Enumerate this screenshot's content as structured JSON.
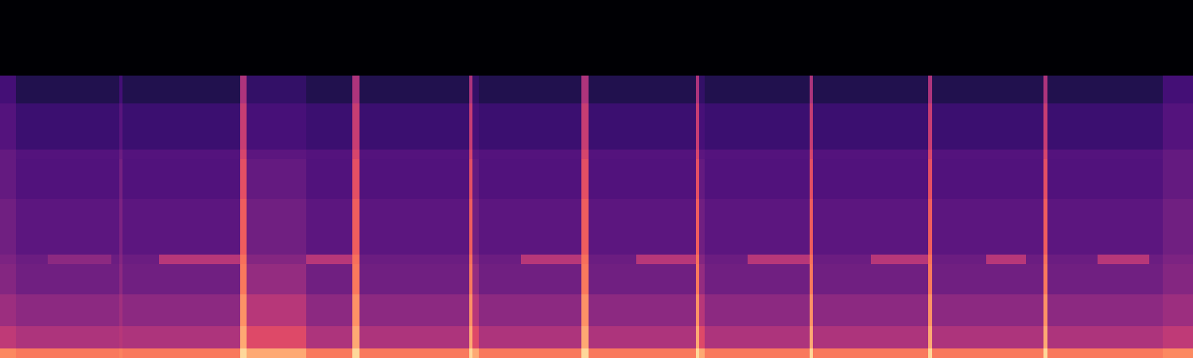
{
  "chart_data": {
    "type": "heatmap",
    "tick_labels": false,
    "color": "magma",
    "color_range": [
      0,
      1
    ],
    "xlim": [
      0,
      1500
    ],
    "ylim": [
      0,
      450
    ],
    "x_edges": [
      0,
      20,
      60,
      140,
      150,
      154,
      200,
      302,
      310,
      385,
      443,
      452,
      590,
      594,
      602,
      655,
      731,
      740,
      800,
      875,
      879,
      886,
      940,
      1018,
      1022,
      1095,
      1167,
      1172,
      1240,
      1290,
      1312,
      1317,
      1380,
      1445,
      1462,
      1500
    ],
    "y_edges": [
      0,
      12,
      40,
      80,
      118,
      130,
      200,
      250,
      262,
      320,
      355,
      450
    ],
    "cells": [
      [
        0.75,
        0.72,
        0.72,
        0.72,
        0.74,
        0.72,
        0.72,
        0.92,
        0.82,
        0.72,
        0.92,
        0.72,
        0.92,
        0.82,
        0.72,
        0.72,
        0.92,
        0.72,
        0.72,
        0.92,
        0.82,
        0.72,
        0.72,
        0.92,
        0.72,
        0.72,
        0.92,
        0.72,
        0.72,
        0.72,
        0.92,
        0.72,
        0.72,
        0.72,
        0.75
      ],
      [
        0.52,
        0.48,
        0.48,
        0.48,
        0.5,
        0.48,
        0.48,
        0.82,
        0.6,
        0.48,
        0.82,
        0.48,
        0.82,
        0.6,
        0.48,
        0.48,
        0.82,
        0.48,
        0.48,
        0.82,
        0.6,
        0.48,
        0.48,
        0.82,
        0.48,
        0.48,
        0.82,
        0.48,
        0.48,
        0.48,
        0.82,
        0.48,
        0.48,
        0.48,
        0.52
      ],
      [
        0.44,
        0.4,
        0.4,
        0.4,
        0.45,
        0.4,
        0.4,
        0.77,
        0.5,
        0.4,
        0.77,
        0.4,
        0.77,
        0.5,
        0.4,
        0.4,
        0.77,
        0.4,
        0.4,
        0.77,
        0.5,
        0.4,
        0.4,
        0.77,
        0.4,
        0.4,
        0.77,
        0.4,
        0.4,
        0.4,
        0.77,
        0.4,
        0.4,
        0.4,
        0.44
      ],
      [
        0.38,
        0.33,
        0.33,
        0.33,
        0.4,
        0.33,
        0.33,
        0.72,
        0.42,
        0.33,
        0.72,
        0.33,
        0.72,
        0.42,
        0.33,
        0.33,
        0.72,
        0.33,
        0.33,
        0.72,
        0.42,
        0.33,
        0.33,
        0.72,
        0.33,
        0.33,
        0.72,
        0.33,
        0.33,
        0.33,
        0.72,
        0.33,
        0.33,
        0.33,
        0.38
      ],
      [
        0.36,
        0.32,
        0.4,
        0.32,
        0.38,
        0.32,
        0.5,
        0.7,
        0.38,
        0.5,
        0.7,
        0.32,
        0.7,
        0.38,
        0.32,
        0.5,
        0.7,
        0.32,
        0.5,
        0.7,
        0.38,
        0.32,
        0.5,
        0.7,
        0.32,
        0.5,
        0.7,
        0.32,
        0.5,
        0.32,
        0.7,
        0.32,
        0.5,
        0.32,
        0.36
      ],
      [
        0.33,
        0.28,
        0.28,
        0.28,
        0.36,
        0.28,
        0.28,
        0.66,
        0.33,
        0.28,
        0.66,
        0.28,
        0.66,
        0.33,
        0.28,
        0.28,
        0.66,
        0.28,
        0.28,
        0.66,
        0.33,
        0.28,
        0.28,
        0.66,
        0.28,
        0.28,
        0.66,
        0.28,
        0.28,
        0.28,
        0.66,
        0.28,
        0.28,
        0.28,
        0.33
      ],
      [
        0.3,
        0.25,
        0.25,
        0.25,
        0.34,
        0.25,
        0.25,
        0.62,
        0.3,
        0.25,
        0.62,
        0.25,
        0.62,
        0.3,
        0.25,
        0.25,
        0.62,
        0.25,
        0.25,
        0.62,
        0.3,
        0.25,
        0.25,
        0.62,
        0.25,
        0.25,
        0.62,
        0.25,
        0.25,
        0.25,
        0.62,
        0.25,
        0.25,
        0.25,
        0.3
      ],
      [
        0.3,
        0.26,
        0.26,
        0.26,
        0.32,
        0.26,
        0.26,
        0.58,
        0.28,
        0.26,
        0.58,
        0.26,
        0.58,
        0.28,
        0.26,
        0.26,
        0.58,
        0.26,
        0.26,
        0.58,
        0.28,
        0.26,
        0.26,
        0.58,
        0.26,
        0.26,
        0.58,
        0.26,
        0.26,
        0.26,
        0.58,
        0.26,
        0.26,
        0.26,
        0.3
      ],
      [
        0.26,
        0.2,
        0.2,
        0.2,
        0.27,
        0.2,
        0.2,
        0.54,
        0.23,
        0.2,
        0.54,
        0.2,
        0.54,
        0.23,
        0.2,
        0.2,
        0.54,
        0.2,
        0.2,
        0.54,
        0.23,
        0.2,
        0.2,
        0.54,
        0.2,
        0.2,
        0.54,
        0.2,
        0.2,
        0.2,
        0.54,
        0.2,
        0.2,
        0.2,
        0.26
      ],
      [
        0.22,
        0.14,
        0.14,
        0.14,
        0.22,
        0.14,
        0.14,
        0.48,
        0.18,
        0.14,
        0.48,
        0.14,
        0.48,
        0.18,
        0.14,
        0.14,
        0.48,
        0.14,
        0.14,
        0.48,
        0.18,
        0.14,
        0.14,
        0.48,
        0.14,
        0.14,
        0.48,
        0.14,
        0.14,
        0.14,
        0.48,
        0.14,
        0.14,
        0.14,
        0.22
      ],
      [
        0,
        0,
        0,
        0,
        0,
        0,
        0,
        0,
        0,
        0,
        0,
        0,
        0,
        0,
        0,
        0,
        0,
        0,
        0,
        0,
        0,
        0,
        0,
        0,
        0,
        0,
        0,
        0,
        0,
        0,
        0,
        0,
        0,
        0,
        0
      ]
    ]
  }
}
